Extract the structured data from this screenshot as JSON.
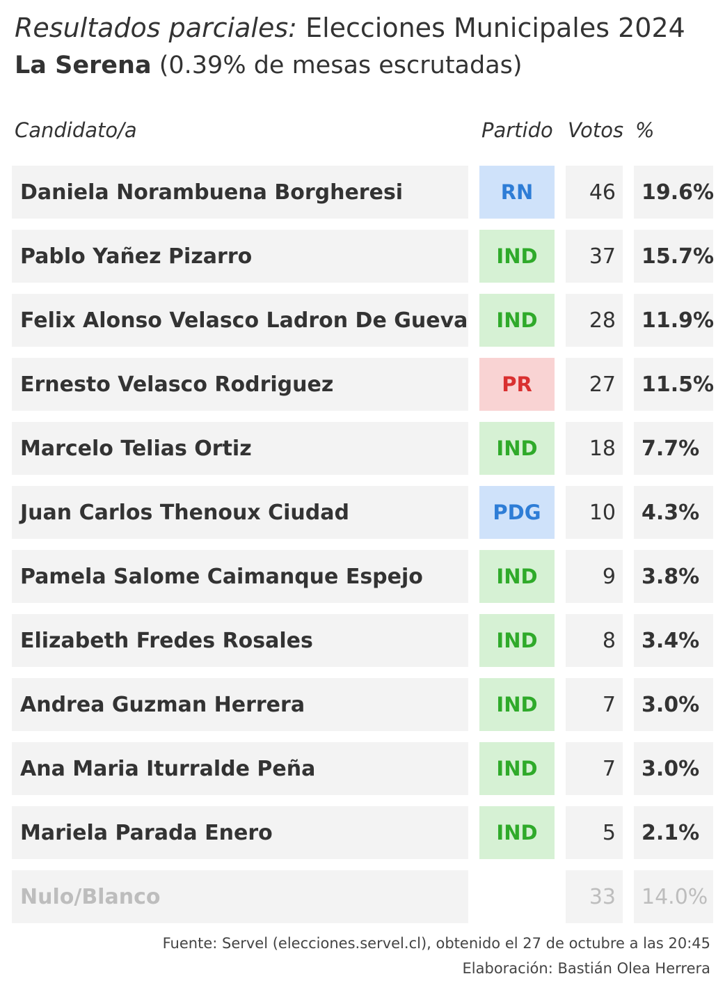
{
  "title": {
    "italic_part": "Resultados parciales:",
    "main_part": "Elecciones Municipales 2024"
  },
  "subtitle": {
    "commune": "La Serena",
    "detail": "(0.39% de mesas escrutadas)"
  },
  "columns": {
    "candidate": "Candidato/a",
    "party": "Partido",
    "votes": "Votos",
    "percent": "%"
  },
  "colors": {
    "cell_bg": "#f3f3f3",
    "rn_bg": "#cfe2fa",
    "rn_text": "#2e7dd6",
    "ind_bg": "#d6f1d4",
    "ind_text": "#2faa2a",
    "pr_bg": "#f9d3d3",
    "pr_text": "#d93030",
    "pdg_bg": "#cfe2fa",
    "pdg_text": "#2e7dd6",
    "muted_text": "#bdbdbd"
  },
  "rows": [
    {
      "name": "Daniela Norambuena Borgheresi",
      "party": "RN",
      "votes": "46",
      "percent": "19.6%"
    },
    {
      "name": "Pablo Yañez Pizarro",
      "party": "IND",
      "votes": "37",
      "percent": "15.7%"
    },
    {
      "name": "Felix Alonso Velasco Ladron De Guevara",
      "party": "IND",
      "votes": "28",
      "percent": "11.9%"
    },
    {
      "name": "Ernesto Velasco Rodriguez",
      "party": "PR",
      "votes": "27",
      "percent": "11.5%"
    },
    {
      "name": "Marcelo Telias Ortiz",
      "party": "IND",
      "votes": "18",
      "percent": "7.7%"
    },
    {
      "name": "Juan Carlos Thenoux Ciudad",
      "party": "PDG",
      "votes": "10",
      "percent": "4.3%"
    },
    {
      "name": "Pamela Salome Caimanque Espejo",
      "party": "IND",
      "votes": "9",
      "percent": "3.8%"
    },
    {
      "name": "Elizabeth Fredes Rosales",
      "party": "IND",
      "votes": "8",
      "percent": "3.4%"
    },
    {
      "name": "Andrea Guzman Herrera",
      "party": "IND",
      "votes": "7",
      "percent": "3.0%"
    },
    {
      "name": "Ana Maria Iturralde Peña",
      "party": "IND",
      "votes": "7",
      "percent": "3.0%"
    },
    {
      "name": "Mariela Parada Enero",
      "party": "IND",
      "votes": "5",
      "percent": "2.1%"
    },
    {
      "name": "Nulo/Blanco",
      "party": "",
      "votes": "33",
      "percent": "14.0%",
      "muted": true
    }
  ],
  "footer": {
    "source": "Fuente: Servel (elecciones.servel.cl), obtenido el 27 de octubre a las 20:45",
    "credit": "Elaboración: Bastián Olea Herrera"
  }
}
